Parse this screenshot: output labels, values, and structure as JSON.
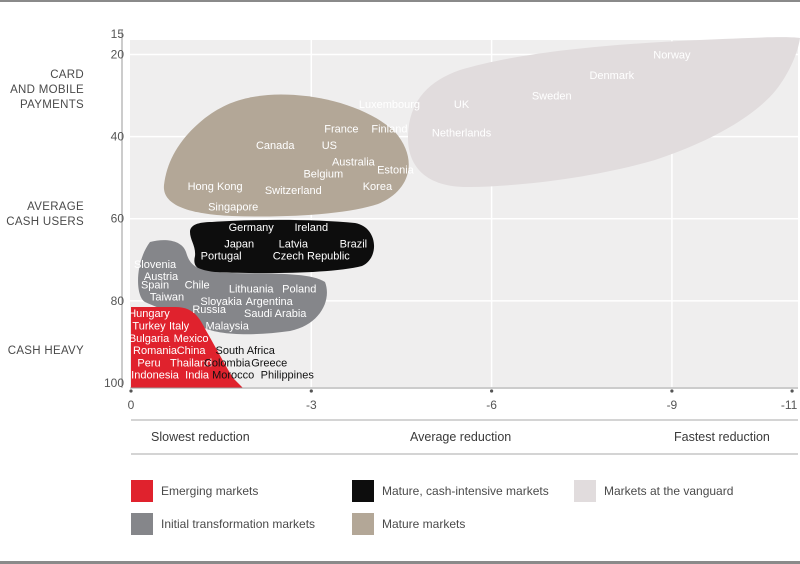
{
  "colors": {
    "emerging": "#e0222d",
    "mature_cash_intensive": "#0d0d0d",
    "vanguard": "#e1dcdd",
    "initial_transformation": "#85868a",
    "mature": "#b3a797",
    "plot_background": "#efeeee"
  },
  "y_categories": {
    "card_mobile": "CARD\nAND MOBILE\nPAYMENTS",
    "average_cash": "AVERAGE\nCASH USERS",
    "cash_heavy": "CASH HEAVY"
  },
  "speed_labels": {
    "slowest": "Slowest reduction",
    "average": "Average reduction",
    "fastest": "Fastest reduction"
  },
  "legend": [
    {
      "label": "Emerging markets",
      "color": "#e0222d"
    },
    {
      "label": "Mature, cash-intensive markets",
      "color": "#0d0d0d"
    },
    {
      "label": "Markets at the vanguard",
      "color": "#e1dcdd"
    },
    {
      "label": "Initial transformation markets",
      "color": "#85868a"
    },
    {
      "label": "Mature markets",
      "color": "#b3a797"
    }
  ],
  "chart_data": {
    "type": "scatter",
    "title": "",
    "xlabel": "",
    "ylabel": "",
    "x_ticks": [
      "0",
      "-3",
      "-6",
      "-9",
      "-11"
    ],
    "y_ticks": [
      "15",
      "20",
      "40",
      "60",
      "80",
      "100"
    ],
    "xlim": [
      0,
      -11
    ],
    "ylim": [
      15,
      100
    ],
    "y_inverted": true,
    "grid": true,
    "series": [
      {
        "name": "Markets at the vanguard",
        "color": "#e1dcdd",
        "text_color": "#ffffff",
        "points": [
          {
            "label": "Norway",
            "x": -9.0,
            "y": 20
          },
          {
            "label": "Denmark",
            "x": -8.0,
            "y": 25
          },
          {
            "label": "Sweden",
            "x": -7.0,
            "y": 30
          },
          {
            "label": "Luxembourg",
            "x": -4.3,
            "y": 32
          },
          {
            "label": "UK",
            "x": -5.5,
            "y": 32
          },
          {
            "label": "Finland",
            "x": -4.3,
            "y": 38
          },
          {
            "label": "Netherlands",
            "x": -5.5,
            "y": 39
          },
          {
            "label": "Estonia",
            "x": -4.4,
            "y": 48
          }
        ]
      },
      {
        "name": "Mature markets",
        "color": "#b3a797",
        "text_color": "#ffffff",
        "points": [
          {
            "label": "France",
            "x": -3.5,
            "y": 38
          },
          {
            "label": "Canada",
            "x": -2.4,
            "y": 42
          },
          {
            "label": "US",
            "x": -3.3,
            "y": 42
          },
          {
            "label": "Australia",
            "x": -3.7,
            "y": 46
          },
          {
            "label": "Belgium",
            "x": -3.2,
            "y": 49
          },
          {
            "label": "Hong Kong",
            "x": -1.4,
            "y": 52
          },
          {
            "label": "Korea",
            "x": -4.1,
            "y": 52
          },
          {
            "label": "Switzerland",
            "x": -2.7,
            "y": 53
          },
          {
            "label": "Singapore",
            "x": -1.7,
            "y": 57
          }
        ]
      },
      {
        "name": "Mature, cash-intensive markets",
        "color": "#0d0d0d",
        "text_color": "#ffffff",
        "points": [
          {
            "label": "Germany",
            "x": -2.0,
            "y": 62
          },
          {
            "label": "Ireland",
            "x": -3.0,
            "y": 62
          },
          {
            "label": "Japan",
            "x": -1.8,
            "y": 66
          },
          {
            "label": "Latvia",
            "x": -2.7,
            "y": 66
          },
          {
            "label": "Brazil",
            "x": -3.7,
            "y": 66
          },
          {
            "label": "Portugal",
            "x": -1.5,
            "y": 69
          },
          {
            "label": "Czech Republic",
            "x": -3.0,
            "y": 69
          }
        ]
      },
      {
        "name": "Initial transformation markets",
        "color": "#85868a",
        "text_color": "#ffffff",
        "points": [
          {
            "label": "Slovenia",
            "x": -0.4,
            "y": 71
          },
          {
            "label": "Austria",
            "x": -0.5,
            "y": 74
          },
          {
            "label": "Spain",
            "x": -0.4,
            "y": 76
          },
          {
            "label": "Chile",
            "x": -1.1,
            "y": 76
          },
          {
            "label": "Lithuania",
            "x": -2.0,
            "y": 77
          },
          {
            "label": "Poland",
            "x": -2.8,
            "y": 77
          },
          {
            "label": "Taiwan",
            "x": -0.6,
            "y": 79
          },
          {
            "label": "Slovakia",
            "x": -1.5,
            "y": 80
          },
          {
            "label": "Argentina",
            "x": -2.3,
            "y": 80
          },
          {
            "label": "Russia",
            "x": -1.3,
            "y": 82
          },
          {
            "label": "Saudi Arabia",
            "x": -2.4,
            "y": 83
          },
          {
            "label": "Malaysia",
            "x": -1.6,
            "y": 86
          }
        ]
      },
      {
        "name": "Emerging markets",
        "color": "#e0222d",
        "text_color": "#ffffff",
        "points": [
          {
            "label": "Hungary",
            "x": -0.3,
            "y": 83
          },
          {
            "label": "Turkey",
            "x": -0.3,
            "y": 86
          },
          {
            "label": "Italy",
            "x": -0.8,
            "y": 86
          },
          {
            "label": "Bulgaria",
            "x": -0.3,
            "y": 89
          },
          {
            "label": "Mexico",
            "x": -1.0,
            "y": 89
          },
          {
            "label": "Romania",
            "x": -0.4,
            "y": 92
          },
          {
            "label": "China",
            "x": -1.0,
            "y": 92
          },
          {
            "label": "South Africa",
            "x": -1.9,
            "y": 92
          },
          {
            "label": "Peru",
            "x": -0.3,
            "y": 95
          },
          {
            "label": "Thailand",
            "x": -1.0,
            "y": 95
          },
          {
            "label": "Colombia",
            "x": -1.6,
            "y": 95
          },
          {
            "label": "Greece",
            "x": -2.3,
            "y": 95
          },
          {
            "label": "Indonesia",
            "x": -0.4,
            "y": 98
          },
          {
            "label": "India",
            "x": -1.1,
            "y": 98
          },
          {
            "label": "Morocco",
            "x": -1.7,
            "y": 98
          },
          {
            "label": "Philippines",
            "x": -2.6,
            "y": 98
          }
        ]
      }
    ]
  }
}
